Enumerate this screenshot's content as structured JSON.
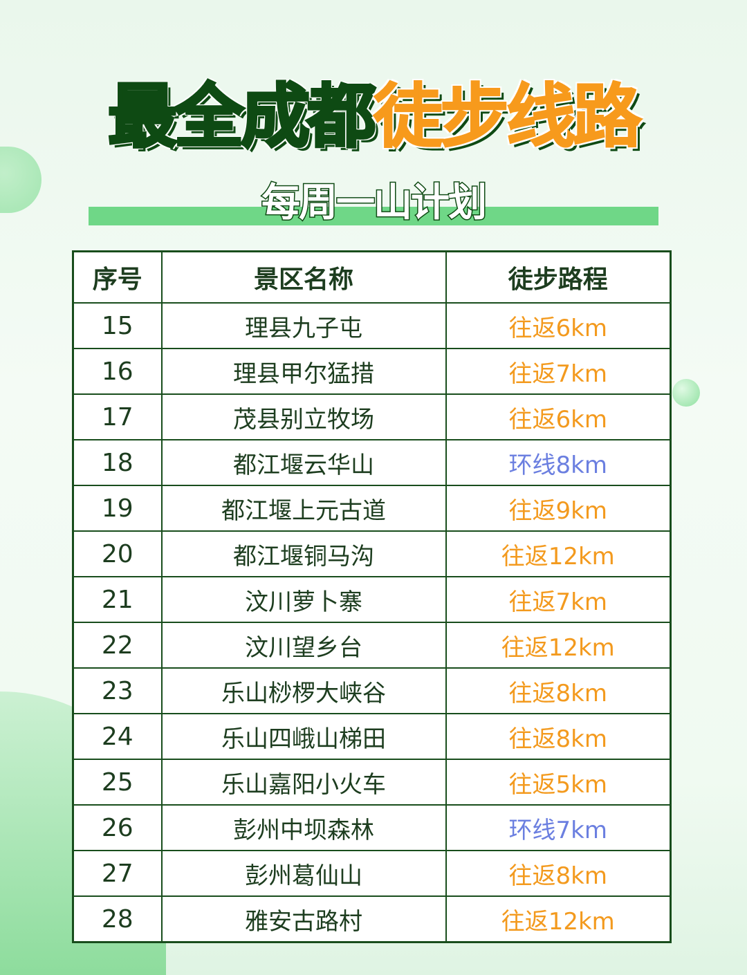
{
  "title": {
    "part1": "最全成都",
    "part2": "徒步线路"
  },
  "subtitle": "每周一山计划",
  "colors": {
    "dark_green": "#0e4a13",
    "orange": "#f39a1e",
    "blue": "#6b7fe0",
    "bar_green": "#6fd787"
  },
  "table": {
    "headers": [
      "序号",
      "景区名称",
      "徒步路程"
    ],
    "rows": [
      {
        "no": "15",
        "name": "理县九子屯",
        "distance": "往返6km",
        "type": "roundtrip"
      },
      {
        "no": "16",
        "name": "理县甲尔猛措",
        "distance": "往返7km",
        "type": "roundtrip"
      },
      {
        "no": "17",
        "name": "茂县别立牧场",
        "distance": "往返6km",
        "type": "roundtrip"
      },
      {
        "no": "18",
        "name": "都江堰云华山",
        "distance": "环线8km",
        "type": "loop"
      },
      {
        "no": "19",
        "name": "都江堰上元古道",
        "distance": "往返9km",
        "type": "roundtrip"
      },
      {
        "no": "20",
        "name": "都江堰铜马沟",
        "distance": "往返12km",
        "type": "roundtrip"
      },
      {
        "no": "21",
        "name": "汶川萝卜寨",
        "distance": "往返7km",
        "type": "roundtrip"
      },
      {
        "no": "22",
        "name": "汶川望乡台",
        "distance": "往返12km",
        "type": "roundtrip"
      },
      {
        "no": "23",
        "name": "乐山桫椤大峡谷",
        "distance": "往返8km",
        "type": "roundtrip"
      },
      {
        "no": "24",
        "name": "乐山四峨山梯田",
        "distance": "往返8km",
        "type": "roundtrip"
      },
      {
        "no": "25",
        "name": "乐山嘉阳小火车",
        "distance": "往返5km",
        "type": "roundtrip"
      },
      {
        "no": "26",
        "name": "彭州中坝森林",
        "distance": "环线7km",
        "type": "loop"
      },
      {
        "no": "27",
        "name": "彭州葛仙山",
        "distance": "往返8km",
        "type": "roundtrip"
      },
      {
        "no": "28",
        "name": "雅安古路村",
        "distance": "往返12km",
        "type": "roundtrip"
      }
    ]
  }
}
